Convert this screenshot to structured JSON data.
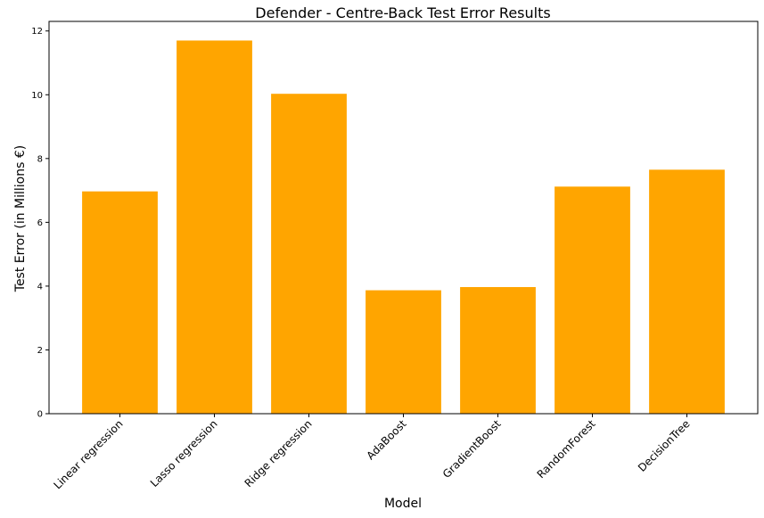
{
  "chart_data": {
    "type": "bar",
    "title": "Defender - Centre-Back Test Error Results",
    "xlabel": "Model",
    "ylabel": "Test Error (in Millions €)",
    "categories": [
      "Linear regression",
      "Lasso regression",
      "Ridge regression",
      "AdaBoost",
      "GradientBoost",
      "RandomForest",
      "DecisionTree"
    ],
    "values": [
      6.97,
      11.7,
      10.03,
      3.87,
      3.97,
      7.12,
      7.65
    ],
    "ylim": [
      0,
      12.3
    ],
    "yticks": [
      "0",
      "2",
      "4",
      "6",
      "8",
      "10",
      "12"
    ],
    "bar_color": "#ffa500",
    "grid": false,
    "legend": "none"
  }
}
